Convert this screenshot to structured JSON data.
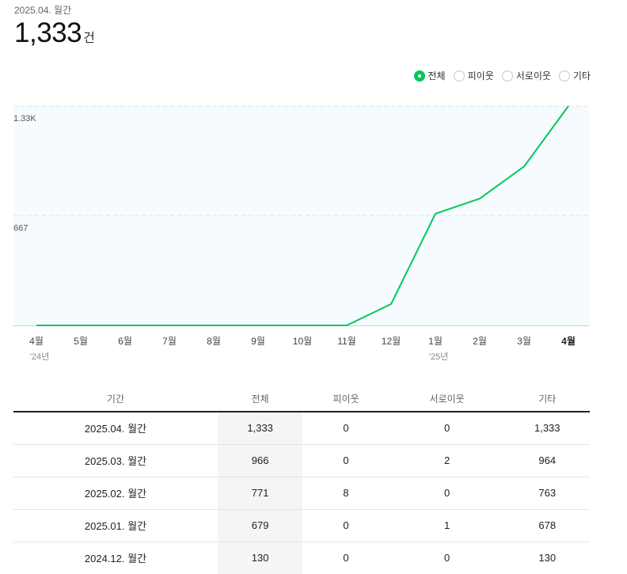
{
  "summary": {
    "period": "2025.04. 월간",
    "total_value": "1,333",
    "total_unit": "건"
  },
  "legend": [
    {
      "label": "전체",
      "active": true
    },
    {
      "label": "피이웃",
      "active": false
    },
    {
      "label": "서로이웃",
      "active": false
    },
    {
      "label": "기타",
      "active": false
    }
  ],
  "colors": {
    "line": "#03c75a",
    "plot_bg": "#f5fbfe",
    "grid": "#dde6ea"
  },
  "chart_data": {
    "type": "line",
    "title": "",
    "xlabel": "",
    "ylabel": "",
    "categories": [
      "4월",
      "5월",
      "6월",
      "7월",
      "8월",
      "9월",
      "10월",
      "11월",
      "12월",
      "1월",
      "2월",
      "3월",
      "4월"
    ],
    "year_labels": [
      "'24년",
      "",
      "",
      "",
      "",
      "",
      "",
      "",
      "",
      "'25년",
      "",
      "",
      ""
    ],
    "highlight_index": 12,
    "series": [
      {
        "values": [
          0,
          0,
          0,
          0,
          0,
          0,
          0,
          0,
          130,
          679,
          771,
          966,
          1333
        ]
      }
    ],
    "ylim": [
      0,
      1333
    ],
    "y_ticks": [
      {
        "value": 667,
        "label": "667"
      },
      {
        "value": 1333,
        "label": "1.33K"
      }
    ],
    "grid": true
  },
  "table": {
    "headers": [
      "기간",
      "전체",
      "피이웃",
      "서로이웃",
      "기타"
    ],
    "rows": [
      [
        "2025.04. 월간",
        "1,333",
        "0",
        "0",
        "1,333"
      ],
      [
        "2025.03. 월간",
        "966",
        "0",
        "2",
        "964"
      ],
      [
        "2025.02. 월간",
        "771",
        "8",
        "0",
        "763"
      ],
      [
        "2025.01. 월간",
        "679",
        "0",
        "1",
        "678"
      ],
      [
        "2024.12. 월간",
        "130",
        "0",
        "0",
        "130"
      ]
    ]
  }
}
